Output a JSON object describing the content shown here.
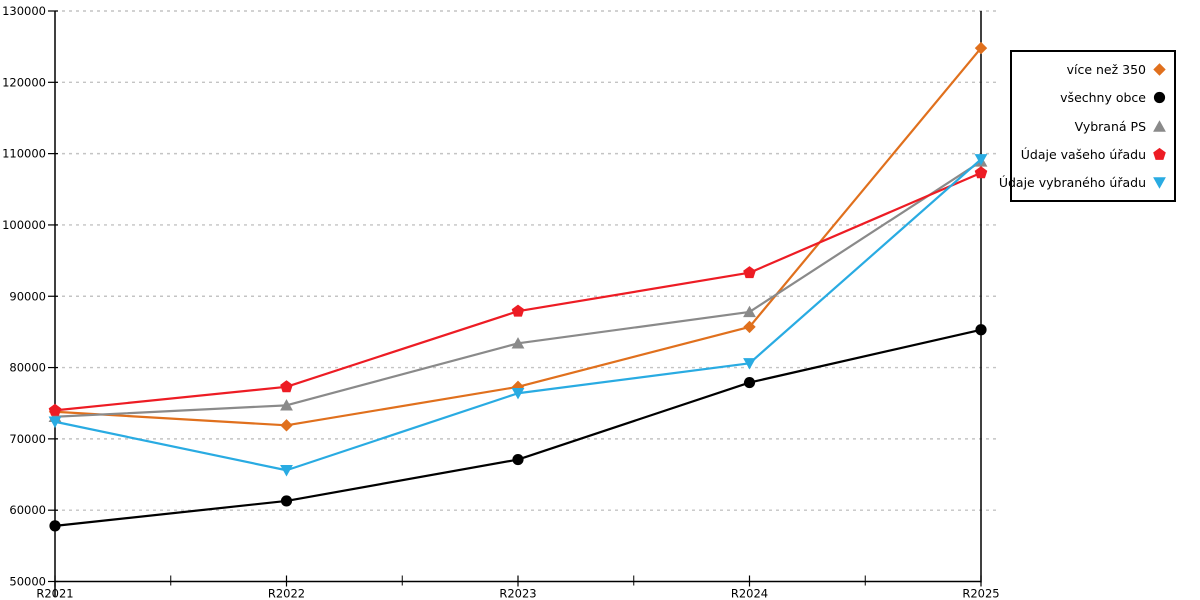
{
  "chart_data": {
    "type": "line",
    "title": "",
    "xlabel": "",
    "ylabel": "",
    "categories": [
      "R2021",
      "R2022",
      "R2023",
      "R2024",
      "R2025"
    ],
    "series": [
      {
        "name": "více než 350",
        "color": "#e0701d",
        "marker": "diamond",
        "values": [
          73800,
          71900,
          77300,
          85700,
          124800
        ]
      },
      {
        "name": "všechny obce",
        "color": "#000000",
        "marker": "circle",
        "values": [
          57800,
          61300,
          67100,
          77900,
          85300
        ]
      },
      {
        "name": "Vybraná PS",
        "color": "#8a8a8a",
        "marker": "triangle-up",
        "values": [
          73100,
          74700,
          83400,
          87800,
          108900
        ]
      },
      {
        "name": "Údaje vašeho úřadu",
        "color": "#ed1c24",
        "marker": "pentagon",
        "values": [
          74000,
          77300,
          87900,
          93300,
          107300
        ]
      },
      {
        "name": "Údaje vybraného úřadu",
        "color": "#29abe2",
        "marker": "triangle-down",
        "values": [
          72400,
          65600,
          76400,
          80600,
          109200
        ]
      }
    ],
    "ylim": [
      50000,
      130000
    ],
    "ytick_step": 10000,
    "y_tick_labels": [
      "50000",
      "60000",
      "70000",
      "80000",
      "90000",
      "100000",
      "110000",
      "120000",
      "130000"
    ],
    "x_tick_labels": [
      "R2021",
      "R2022",
      "R2023",
      "R2024",
      "R2025"
    ],
    "grid": "horizontal-dashed",
    "legend_position": "outside-right"
  },
  "colors": {
    "background": "#ffffff",
    "axis": "#000000",
    "gridline": "#c4c4c4",
    "tick_label": "#000000"
  }
}
